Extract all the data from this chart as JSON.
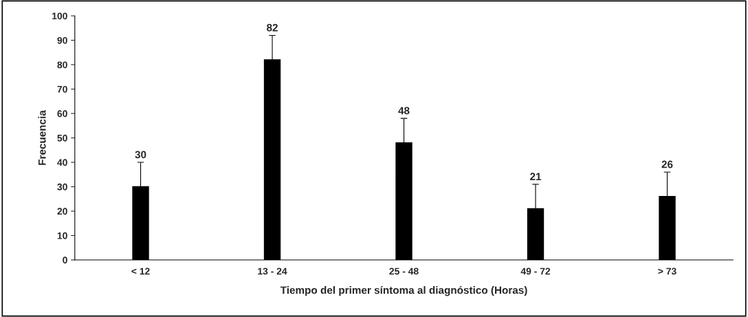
{
  "chart_data": {
    "type": "bar",
    "xlabel": "Tiempo del primer síntoma al diagnóstico (Horas)",
    "ylabel": "Frecuencia",
    "categories": [
      "< 12",
      "13 - 24",
      "25 - 48",
      "49 - 72",
      "> 73"
    ],
    "values": [
      30,
      82,
      48,
      21,
      26
    ],
    "errors": [
      [
        30,
        40
      ],
      [
        82,
        92
      ],
      [
        48,
        58
      ],
      [
        21,
        31
      ],
      [
        26,
        36
      ]
    ],
    "color": "#000000",
    "ylim": [
      0,
      100
    ],
    "yticks": [
      0,
      10,
      20,
      30,
      40,
      50,
      60,
      70,
      80,
      90,
      100
    ],
    "data_labels": true,
    "grid": false,
    "legend": false
  }
}
